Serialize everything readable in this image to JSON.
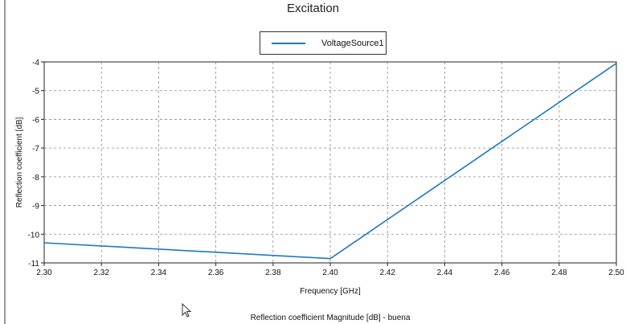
{
  "chart_data": {
    "type": "line",
    "title": "Excitation",
    "xlabel": "Frequency [GHz]",
    "ylabel": "Reflection coefficient [dB]",
    "caption": "Reflection coefficient Magnitude [dB] - buena",
    "xlim": [
      2.3,
      2.5
    ],
    "ylim": [
      -11,
      -4
    ],
    "xticks": [
      "2.30",
      "2.32",
      "2.34",
      "2.36",
      "2.38",
      "2.40",
      "2.42",
      "2.44",
      "2.46",
      "2.48",
      "2.50"
    ],
    "yticks": [
      "-4",
      "-5",
      "-6",
      "-7",
      "-8",
      "-9",
      "-10",
      "-11"
    ],
    "grid": true,
    "legend_position": "top-center",
    "series": [
      {
        "name": "VoltageSource1",
        "color": "#1f77c4",
        "x": [
          2.3,
          2.4,
          2.5
        ],
        "y": [
          -10.3,
          -10.85,
          -4.05
        ]
      }
    ]
  },
  "icons": {
    "cursor": "mouse-pointer-icon"
  }
}
